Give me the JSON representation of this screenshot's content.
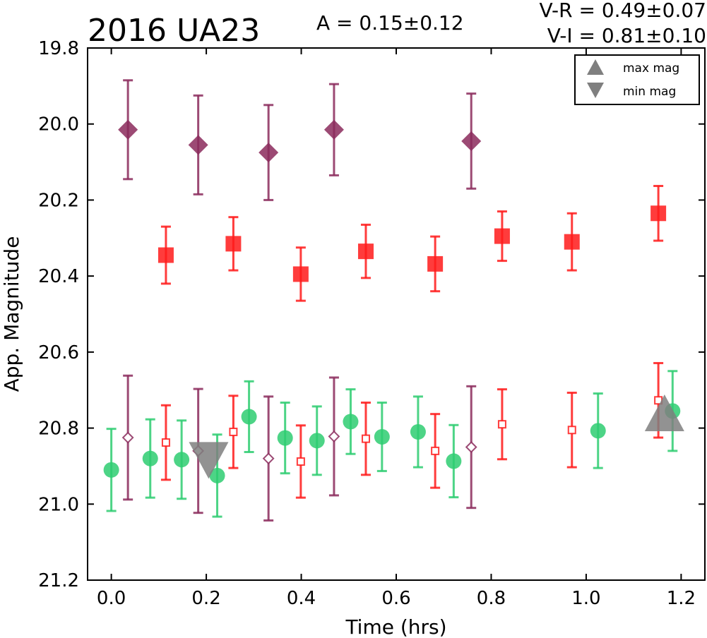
{
  "chart_data": {
    "type": "scatter",
    "title": "2016 UA23",
    "annotations": {
      "amplitude": "A  = 0.15±0.12",
      "v_minus_r": "V-R = 0.49±0.07",
      "v_minus_i": "V-I  = 0.81±0.10"
    },
    "xlabel": "Time (hrs)",
    "ylabel": "App. Magnitude",
    "xlim": [
      -0.05,
      1.25
    ],
    "ylim": [
      21.2,
      19.8
    ],
    "y_inverted": true,
    "grid": false,
    "xticks": [
      "0.0",
      "0.2",
      "0.4",
      "0.6",
      "0.8",
      "1.0",
      "1.2"
    ],
    "yticks": [
      "19.8",
      "20.0",
      "20.2",
      "20.4",
      "20.6",
      "20.8",
      "21.0",
      "21.2"
    ],
    "legend": {
      "position": "top-right",
      "entries": [
        {
          "label": "max mag",
          "marker": "triangle-up",
          "color": "#7f7f7f"
        },
        {
          "label": "min mag",
          "marker": "triangle-down",
          "color": "#7f7f7f"
        }
      ]
    },
    "colors": {
      "i_band": "#8b2a5c",
      "r_band": "#ff1a1a",
      "v_band": "#2ecc71",
      "extrema": "#7f7f7f"
    },
    "series": [
      {
        "marker": "diamond-filled",
        "color": "#8b2a5c",
        "points": [
          {
            "x": 0.035,
            "y": 20.015,
            "err": 0.13
          },
          {
            "x": 0.183,
            "y": 20.055,
            "err": 0.13
          },
          {
            "x": 0.331,
            "y": 20.075,
            "err": 0.125
          },
          {
            "x": 0.469,
            "y": 20.015,
            "err": 0.12
          },
          {
            "x": 0.758,
            "y": 20.045,
            "err": 0.125
          }
        ]
      },
      {
        "marker": "square-filled",
        "color": "#ff1a1a",
        "points": [
          {
            "x": 0.115,
            "y": 20.345,
            "err": 0.075
          },
          {
            "x": 0.257,
            "y": 20.315,
            "err": 0.07
          },
          {
            "x": 0.399,
            "y": 20.395,
            "err": 0.07
          },
          {
            "x": 0.536,
            "y": 20.335,
            "err": 0.07
          },
          {
            "x": 0.682,
            "y": 20.368,
            "err": 0.072
          },
          {
            "x": 0.823,
            "y": 20.295,
            "err": 0.065
          },
          {
            "x": 0.97,
            "y": 20.31,
            "err": 0.075
          },
          {
            "x": 1.152,
            "y": 20.235,
            "err": 0.072
          }
        ]
      },
      {
        "marker": "circle-filled",
        "color": "#2ecc71",
        "points": [
          {
            "x": 0.0,
            "y": 20.91,
            "err": 0.108
          },
          {
            "x": 0.082,
            "y": 20.88,
            "err": 0.103
          },
          {
            "x": 0.148,
            "y": 20.883,
            "err": 0.103
          },
          {
            "x": 0.223,
            "y": 20.925,
            "err": 0.108
          },
          {
            "x": 0.29,
            "y": 20.77,
            "err": 0.093
          },
          {
            "x": 0.366,
            "y": 20.826,
            "err": 0.093
          },
          {
            "x": 0.433,
            "y": 20.833,
            "err": 0.09
          },
          {
            "x": 0.504,
            "y": 20.783,
            "err": 0.085
          },
          {
            "x": 0.57,
            "y": 20.823,
            "err": 0.09
          },
          {
            "x": 0.646,
            "y": 20.81,
            "err": 0.093
          },
          {
            "x": 0.721,
            "y": 20.887,
            "err": 0.095
          },
          {
            "x": 1.025,
            "y": 20.807,
            "err": 0.098
          },
          {
            "x": 1.182,
            "y": 20.755,
            "err": 0.105
          }
        ]
      },
      {
        "marker": "diamond-open",
        "color": "#8b2a5c",
        "points": [
          {
            "x": 0.035,
            "y": 20.825,
            "err": 0.163
          },
          {
            "x": 0.183,
            "y": 20.86,
            "err": 0.163
          },
          {
            "x": 0.331,
            "y": 20.88,
            "err": 0.163
          },
          {
            "x": 0.469,
            "y": 20.822,
            "err": 0.155
          },
          {
            "x": 0.758,
            "y": 20.85,
            "err": 0.16
          }
        ]
      },
      {
        "marker": "square-open",
        "color": "#ff1a1a",
        "points": [
          {
            "x": 0.115,
            "y": 20.838,
            "err": 0.098
          },
          {
            "x": 0.257,
            "y": 20.81,
            "err": 0.095
          },
          {
            "x": 0.399,
            "y": 20.888,
            "err": 0.095
          },
          {
            "x": 0.536,
            "y": 20.828,
            "err": 0.095
          },
          {
            "x": 0.682,
            "y": 20.86,
            "err": 0.097
          },
          {
            "x": 0.823,
            "y": 20.79,
            "err": 0.092
          },
          {
            "x": 0.97,
            "y": 20.805,
            "err": 0.098
          },
          {
            "x": 1.152,
            "y": 20.727,
            "err": 0.098
          }
        ]
      }
    ],
    "extrema": [
      {
        "label": "max mag",
        "x": 1.165,
        "y": 20.76,
        "marker": "triangle-up"
      },
      {
        "label": "min mag",
        "x": 0.205,
        "y": 20.885,
        "marker": "triangle-down"
      }
    ]
  }
}
